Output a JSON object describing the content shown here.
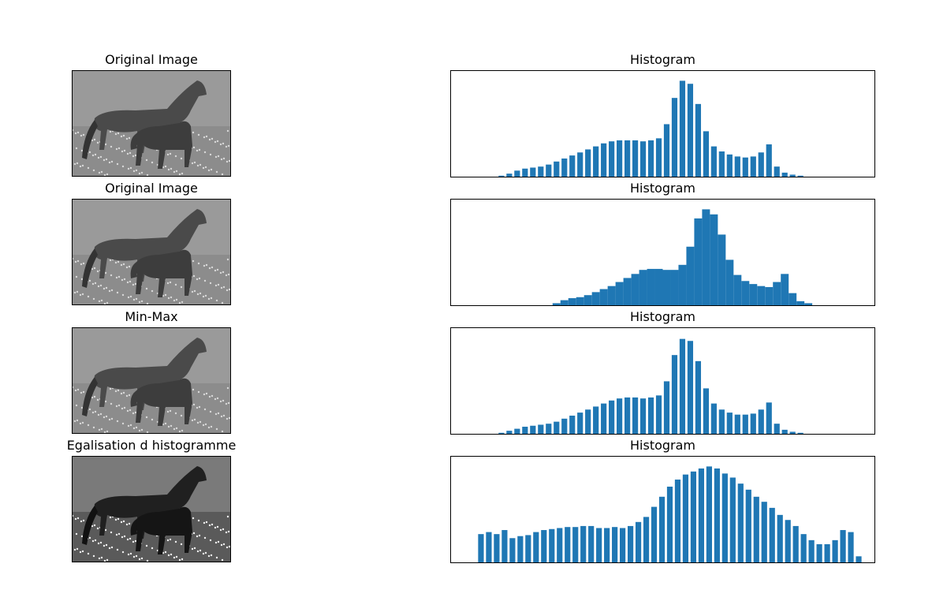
{
  "panels": [
    {
      "image_title": "Original Image",
      "hist_title": "Histogram",
      "image_tone": "normal"
    },
    {
      "image_title": "Original Image",
      "hist_title": "Histogram",
      "image_tone": "normal"
    },
    {
      "image_title": "Min-Max",
      "hist_title": "Histogram",
      "image_tone": "normal"
    },
    {
      "image_title": "Egalisation d histogramme",
      "hist_title": "Histogram",
      "image_tone": "high-contrast"
    }
  ],
  "bar_color": "#1f77b4",
  "chart_data": [
    {
      "type": "bar",
      "title": "Histogram",
      "xlim": [
        0,
        255
      ],
      "ylim": [
        0,
        1.0
      ],
      "x": [
        20,
        25,
        30,
        35,
        40,
        45,
        50,
        55,
        60,
        65,
        70,
        75,
        80,
        85,
        90,
        95,
        100,
        105,
        110,
        115,
        120,
        125,
        130,
        135,
        140,
        145,
        150,
        155,
        160,
        165,
        170,
        175,
        180,
        185,
        190,
        195,
        200,
        205,
        210,
        215,
        220,
        225,
        230,
        235,
        240,
        245,
        250,
        255
      ],
      "values": [
        0.0,
        0.01,
        0.03,
        0.06,
        0.08,
        0.09,
        0.1,
        0.12,
        0.15,
        0.18,
        0.21,
        0.24,
        0.27,
        0.3,
        0.33,
        0.35,
        0.36,
        0.36,
        0.36,
        0.35,
        0.36,
        0.38,
        0.52,
        0.78,
        0.95,
        0.92,
        0.72,
        0.45,
        0.3,
        0.25,
        0.22,
        0.2,
        0.19,
        0.2,
        0.24,
        0.32,
        0.1,
        0.04,
        0.02,
        0.01,
        0.0,
        0,
        0,
        0,
        0,
        0,
        0,
        0
      ],
      "gap": true
    },
    {
      "type": "bar",
      "title": "Histogram",
      "xlim": [
        0,
        255
      ],
      "ylim": [
        0,
        1.0
      ],
      "x": [
        55,
        60,
        65,
        70,
        75,
        80,
        85,
        90,
        95,
        100,
        105,
        110,
        115,
        120,
        125,
        130,
        135,
        140,
        145,
        150,
        155,
        160,
        165,
        170,
        175,
        180,
        185,
        190,
        195,
        200,
        205,
        210,
        215,
        220,
        225,
        230,
        235,
        240,
        245,
        250,
        255
      ],
      "values": [
        0.0,
        0.02,
        0.05,
        0.07,
        0.08,
        0.1,
        0.13,
        0.16,
        0.19,
        0.23,
        0.27,
        0.31,
        0.35,
        0.36,
        0.36,
        0.35,
        0.35,
        0.4,
        0.58,
        0.86,
        0.95,
        0.9,
        0.7,
        0.45,
        0.3,
        0.24,
        0.21,
        0.19,
        0.18,
        0.23,
        0.31,
        0.12,
        0.04,
        0.02,
        0,
        0,
        0,
        0,
        0,
        0,
        0
      ],
      "gap": false
    },
    {
      "type": "bar",
      "title": "Histogram",
      "xlim": [
        0,
        255
      ],
      "ylim": [
        0,
        1.0
      ],
      "x": [
        20,
        25,
        30,
        35,
        40,
        45,
        50,
        55,
        60,
        65,
        70,
        75,
        80,
        85,
        90,
        95,
        100,
        105,
        110,
        115,
        120,
        125,
        130,
        135,
        140,
        145,
        150,
        155,
        160,
        165,
        170,
        175,
        180,
        185,
        190,
        195,
        200,
        205,
        210,
        215,
        220,
        225,
        230,
        235,
        240,
        245,
        250,
        255
      ],
      "values": [
        0.0,
        0.01,
        0.03,
        0.05,
        0.07,
        0.08,
        0.09,
        0.1,
        0.12,
        0.15,
        0.18,
        0.21,
        0.24,
        0.27,
        0.3,
        0.33,
        0.35,
        0.36,
        0.36,
        0.35,
        0.36,
        0.38,
        0.52,
        0.78,
        0.94,
        0.92,
        0.72,
        0.45,
        0.3,
        0.24,
        0.21,
        0.19,
        0.19,
        0.2,
        0.24,
        0.31,
        0.1,
        0.04,
        0.02,
        0.01,
        0,
        0,
        0,
        0,
        0,
        0,
        0,
        0
      ],
      "gap": true
    },
    {
      "type": "bar",
      "title": "Histogram",
      "xlim": [
        0,
        255
      ],
      "ylim": [
        0,
        1.0
      ],
      "x": [
        12,
        17,
        22,
        27,
        32,
        37,
        42,
        47,
        52,
        57,
        62,
        67,
        72,
        77,
        82,
        87,
        92,
        97,
        102,
        107,
        112,
        117,
        122,
        127,
        132,
        137,
        142,
        147,
        152,
        157,
        162,
        167,
        172,
        177,
        182,
        187,
        192,
        197,
        202,
        207,
        212,
        217,
        222,
        227,
        232,
        237,
        242,
        247,
        252
      ],
      "values": [
        0.28,
        0.3,
        0.28,
        0.32,
        0.24,
        0.26,
        0.27,
        0.3,
        0.32,
        0.33,
        0.34,
        0.35,
        0.35,
        0.36,
        0.36,
        0.34,
        0.34,
        0.35,
        0.34,
        0.36,
        0.4,
        0.45,
        0.55,
        0.65,
        0.75,
        0.82,
        0.87,
        0.9,
        0.93,
        0.95,
        0.93,
        0.88,
        0.84,
        0.78,
        0.72,
        0.65,
        0.6,
        0.54,
        0.47,
        0.42,
        0.36,
        0.28,
        0.22,
        0.18,
        0.18,
        0.22,
        0.32,
        0.3,
        0.06
      ],
      "gap": true
    }
  ]
}
